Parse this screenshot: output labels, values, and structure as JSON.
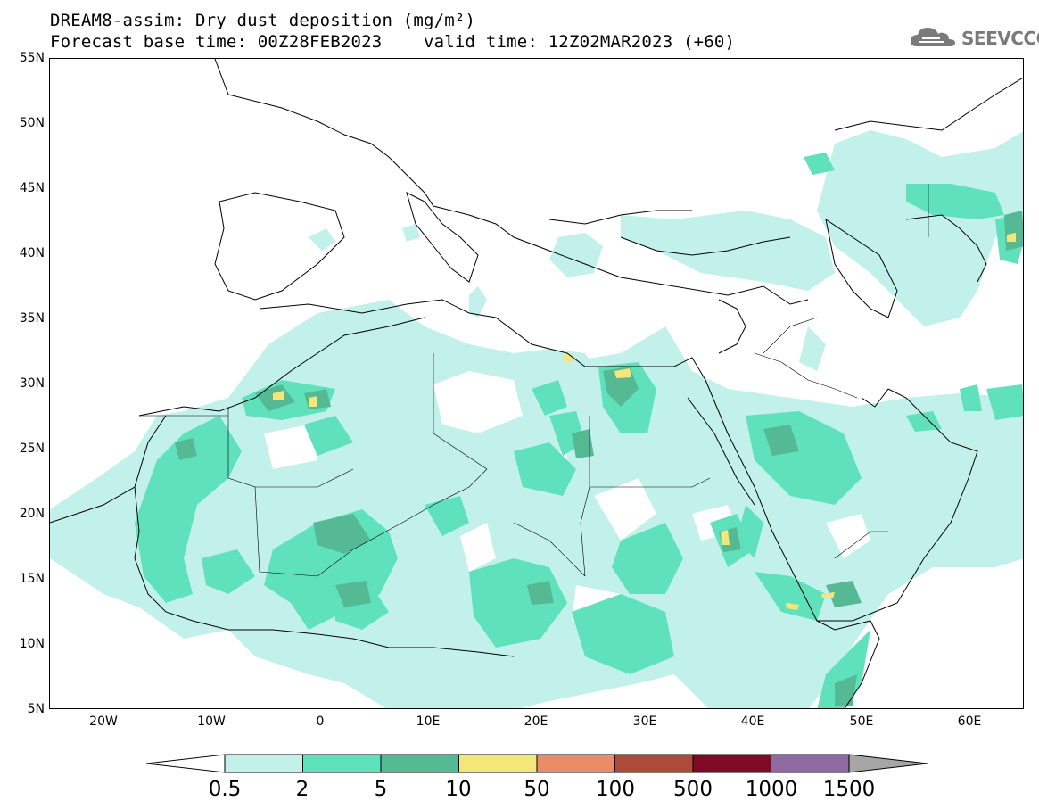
{
  "title": {
    "line1": "DREAM8-assim: Dry dust deposition (mg/m²)",
    "line2": "Forecast base time: 00Z28FEB2023    valid time: 12Z02MAR2023 (+60)"
  },
  "logo": {
    "text": "SEEVCCC",
    "icon": "cloud-icon"
  },
  "axes": {
    "lat_labels": [
      "55N",
      "50N",
      "45N",
      "40N",
      "35N",
      "30N",
      "25N",
      "20N",
      "15N",
      "10N",
      "5N"
    ],
    "lon_labels": [
      "20W",
      "10W",
      "0",
      "10E",
      "20E",
      "30E",
      "40E",
      "50E",
      "60E"
    ],
    "lat_range": [
      5,
      55
    ],
    "lon_range": [
      -25,
      65
    ]
  },
  "legend": {
    "labels": [
      "0.5",
      "2",
      "5",
      "10",
      "50",
      "100",
      "500",
      "1000",
      "1500"
    ],
    "colors": [
      "#c1f1ea",
      "#5fe2bb",
      "#55b994",
      "#f4e77a",
      "#ea8c68",
      "#ad4a3c",
      "#7e0a26",
      "#8e6aa0"
    ],
    "under_color": "#ffffff",
    "over_color": "#a6a6a6"
  },
  "map_data": {
    "variable": "Dry dust deposition",
    "units": "mg/m²",
    "region": "North Africa, Mediterranean and Middle East"
  }
}
